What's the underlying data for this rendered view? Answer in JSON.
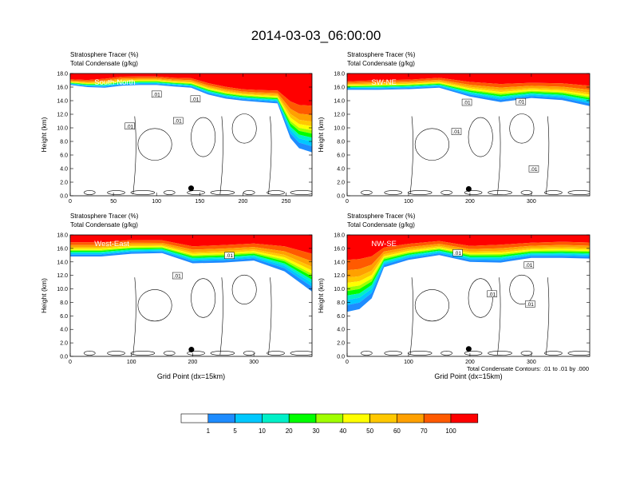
{
  "title": "2014-03-03_06:00:00",
  "colors": {
    "levels": [
      "#ffffff",
      "#1e8cff",
      "#00c8ff",
      "#00f0c8",
      "#00ff00",
      "#a0ff00",
      "#ffff00",
      "#ffc800",
      "#ffa000",
      "#ff5a00",
      "#ff0000"
    ]
  },
  "colorbar": {
    "labels": [
      "1",
      "5",
      "10",
      "20",
      "30",
      "40",
      "50",
      "60",
      "70",
      "100"
    ]
  },
  "footnote": "Total Condensate Contours: .01 to .01 by .000",
  "chart_data": [
    {
      "type": "heatmap",
      "label": "South-North",
      "title_line1": "Stratosphere Tracer   (%)",
      "title_line2": "Total Condensate   (g/kg)",
      "ylabel": "Height (km)",
      "xlabel": "",
      "ylim": [
        0,
        18
      ],
      "xlim": [
        0,
        280
      ],
      "yticks": [
        "0.0",
        "2.0",
        "4.0",
        "6.0",
        "8.0",
        "10.0",
        "12.0",
        "14.0",
        "16.0",
        "18.0"
      ],
      "xticks": [
        {
          "v": 0,
          "t": "0"
        },
        {
          "v": 50,
          "t": "50"
        },
        {
          "v": 100,
          "t": "100"
        },
        {
          "v": 150,
          "t": "150"
        },
        {
          "v": 200,
          "t": "200"
        },
        {
          "v": 250,
          "t": "250"
        }
      ],
      "contour_labels": [
        {
          "x": 145,
          "y": 14.2,
          "t": ".01"
        },
        {
          "x": 100,
          "y": 14.9,
          "t": ".01"
        },
        {
          "x": 125,
          "y": 11.0,
          "t": ".01"
        },
        {
          "x": 69,
          "y": 10.2,
          "t": ".01"
        }
      ],
      "marker": {
        "x": 140,
        "y": 1.1
      },
      "fill": [
        [
          0,
          16.3,
          16.3
        ],
        [
          20,
          16.3,
          16.0
        ],
        [
          40,
          16.6,
          15.9
        ],
        [
          60,
          16.9,
          16.2
        ],
        [
          80,
          16.9,
          16.3
        ],
        [
          100,
          16.9,
          16.3
        ],
        [
          120,
          16.7,
          16.1
        ],
        [
          140,
          16.7,
          15.9
        ],
        [
          160,
          16.1,
          14.9
        ],
        [
          180,
          15.6,
          14.3
        ],
        [
          200,
          15.2,
          14.0
        ],
        [
          220,
          15.1,
          13.8
        ],
        [
          240,
          15.1,
          13.6
        ],
        [
          255,
          15.0,
          8.5
        ],
        [
          265,
          14.9,
          7.0
        ],
        [
          280,
          15.0,
          6.4
        ]
      ]
    },
    {
      "type": "heatmap",
      "label": "SW-NE",
      "title_line1": "Stratosphere Tracer   (%)",
      "title_line2": "Total Condensate   (g/kg)",
      "ylabel": "Height (km)",
      "xlabel": "",
      "ylim": [
        0,
        18
      ],
      "xlim": [
        0,
        395
      ],
      "yticks": [
        "0.0",
        "2.0",
        "4.0",
        "6.0",
        "8.0",
        "10.0",
        "12.0",
        "14.0",
        "16.0",
        "18.0"
      ],
      "xticks": [
        {
          "v": 0,
          "t": "0"
        },
        {
          "v": 100,
          "t": "100"
        },
        {
          "v": 200,
          "t": "200"
        },
        {
          "v": 300,
          "t": "300"
        }
      ],
      "contour_labels": [
        {
          "x": 195,
          "y": 13.7,
          "t": ".01"
        },
        {
          "x": 283,
          "y": 13.8,
          "t": ".01"
        },
        {
          "x": 178,
          "y": 9.4,
          "t": ".01"
        },
        {
          "x": 304,
          "y": 3.9,
          "t": ".01"
        }
      ],
      "marker": {
        "x": 198,
        "y": 1.0
      },
      "fill": [
        [
          0,
          16.2,
          15.6
        ],
        [
          50,
          16.4,
          15.6
        ],
        [
          100,
          16.5,
          15.7
        ],
        [
          150,
          16.8,
          15.9
        ],
        [
          200,
          16.5,
          14.6
        ],
        [
          250,
          16.4,
          13.8
        ],
        [
          300,
          16.4,
          14.4
        ],
        [
          350,
          16.4,
          14.1
        ],
        [
          395,
          16.3,
          13.2
        ]
      ]
    },
    {
      "type": "heatmap",
      "label": "West-East",
      "title_line1": "Stratosphere Tracer   (%)",
      "title_line2": "Total Condensate   (g/kg)",
      "ylabel": "Height (km)",
      "xlabel": "Grid Point (dx=15km)",
      "ylim": [
        0,
        18
      ],
      "xlim": [
        0,
        395
      ],
      "yticks": [
        "0.0",
        "2.0",
        "4.0",
        "6.0",
        "8.0",
        "10.0",
        "12.0",
        "14.0",
        "16.0",
        "18.0"
      ],
      "xticks": [
        {
          "v": 0,
          "t": "0"
        },
        {
          "v": 100,
          "t": "100"
        },
        {
          "v": 200,
          "t": "200"
        },
        {
          "v": 300,
          "t": "300"
        }
      ],
      "contour_labels": [
        {
          "x": 260,
          "y": 14.9,
          "t": ".01"
        },
        {
          "x": 175,
          "y": 11.9,
          "t": ".01"
        }
      ],
      "marker": {
        "x": 198,
        "y": 1.0
      },
      "fill": [
        [
          0,
          16.6,
          14.8
        ],
        [
          50,
          16.6,
          14.8
        ],
        [
          100,
          16.9,
          15.2
        ],
        [
          150,
          16.8,
          15.3
        ],
        [
          200,
          16.2,
          13.8
        ],
        [
          250,
          16.4,
          13.9
        ],
        [
          300,
          16.6,
          14.2
        ],
        [
          350,
          16.7,
          12.6
        ],
        [
          395,
          16.4,
          9.6
        ]
      ]
    },
    {
      "type": "heatmap",
      "label": "NW-SE",
      "title_line1": "Stratosphere Tracer   (%)",
      "title_line2": "Total Condensate   (g/kg)",
      "ylabel": "Height (km)",
      "xlabel": "Grid Point (dx=15km)",
      "ylim": [
        0,
        18
      ],
      "xlim": [
        0,
        395
      ],
      "yticks": [
        "0.0",
        "2.0",
        "4.0",
        "6.0",
        "8.0",
        "10.0",
        "12.0",
        "14.0",
        "16.0",
        "18.0"
      ],
      "xticks": [
        {
          "v": 0,
          "t": "0"
        },
        {
          "v": 100,
          "t": "100"
        },
        {
          "v": 200,
          "t": "200"
        },
        {
          "v": 300,
          "t": "300"
        }
      ],
      "contour_labels": [
        {
          "x": 180,
          "y": 15.3,
          "t": ".01"
        },
        {
          "x": 296,
          "y": 13.5,
          "t": ".01"
        },
        {
          "x": 236,
          "y": 9.2,
          "t": ".01"
        },
        {
          "x": 298,
          "y": 7.7,
          "t": ".01"
        }
      ],
      "marker": {
        "x": 198,
        "y": 1.1
      },
      "fill": [
        [
          0,
          16.4,
          6.6
        ],
        [
          20,
          16.4,
          7.0
        ],
        [
          40,
          16.3,
          8.6
        ],
        [
          60,
          16.2,
          13.2
        ],
        [
          100,
          16.5,
          14.3
        ],
        [
          150,
          16.8,
          15.0
        ],
        [
          200,
          16.2,
          14.0
        ],
        [
          250,
          16.5,
          13.9
        ],
        [
          300,
          16.6,
          14.6
        ],
        [
          350,
          16.8,
          14.6
        ],
        [
          395,
          16.7,
          14.5
        ]
      ]
    }
  ]
}
